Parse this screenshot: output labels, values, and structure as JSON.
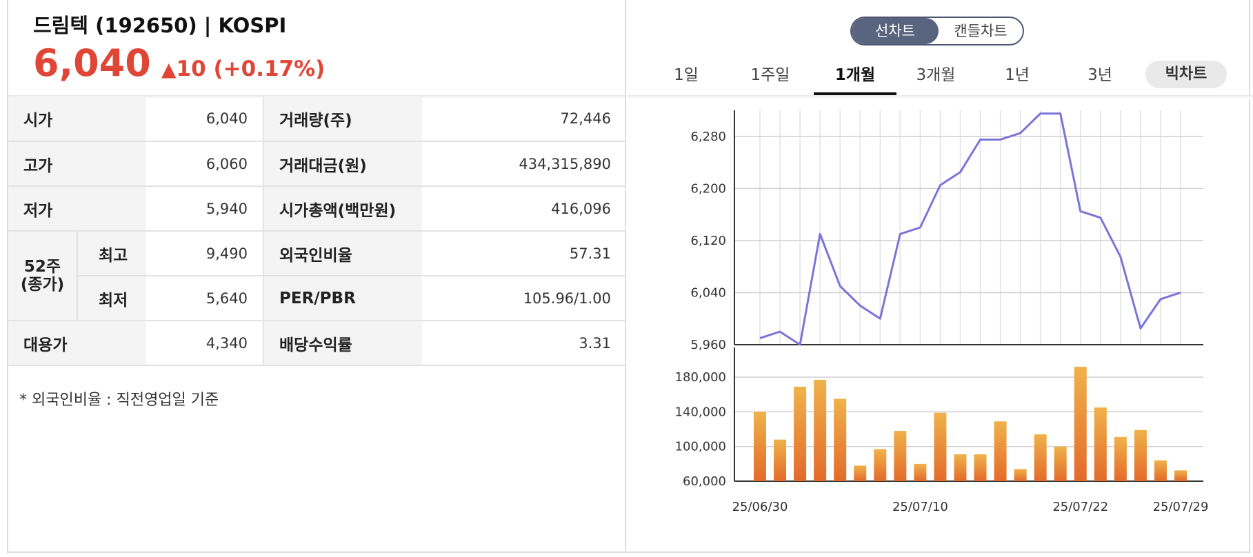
{
  "header": {
    "title": "드림텍 (192650) | KOSPI",
    "price": "6,040",
    "change_arrow": "▲",
    "change": "10 (+0.17%)",
    "up_color": "#e04636"
  },
  "table": {
    "open_label": "시가",
    "open": "6,040",
    "high_label": "고가",
    "high": "6,060",
    "low_label": "저가",
    "low": "5,940",
    "w52_label": "52주\n(종가)",
    "w52_high_label": "최고",
    "w52_high": "9,490",
    "w52_low_label": "최저",
    "w52_low": "5,640",
    "sub_label": "대용가",
    "sub": "4,340",
    "volume_label": "거래량(주)",
    "volume": "72,446",
    "amount_label": "거래대금(원)",
    "amount": "434,315,890",
    "mcap_label": "시가총액(백만원)",
    "mcap": "416,096",
    "foreign_label": "외국인비율",
    "foreign": "57.31",
    "perpbr_label": "PER/PBR",
    "perpbr": "105.96/1.00",
    "div_label": "배당수익률",
    "div": "3.31"
  },
  "footnote": "* 외국인비율 : 직전영업일 기준",
  "toggle": {
    "line": "선차트",
    "candle": "캔들차트"
  },
  "tabs": [
    "1일",
    "1주일",
    "1개월",
    "3개월",
    "1년",
    "3년"
  ],
  "active_tab": "1개월",
  "big_chart": "빅차트",
  "chart_data": {
    "type": "line",
    "x_labels": [
      "25/06/30",
      "25/07/10",
      "25/07/22",
      "25/07/29"
    ],
    "price": {
      "values": [
        5970,
        5980,
        5960,
        6130,
        6050,
        6020,
        6000,
        6130,
        6140,
        6205,
        6225,
        6275,
        6275,
        6285,
        6315,
        6315,
        6165,
        6155,
        6095,
        5985,
        6030,
        6040
      ],
      "yticks": [
        "6,280",
        "6,200",
        "6,120",
        "6,040",
        "5,960"
      ],
      "ylim": [
        5960,
        6320
      ],
      "color": "#7b74d8"
    },
    "volume": {
      "type": "bar",
      "values": [
        140000,
        108000,
        169000,
        177000,
        155000,
        78000,
        97000,
        118000,
        80000,
        139000,
        91000,
        91000,
        129000,
        74000,
        114000,
        100000,
        192000,
        145000,
        111000,
        119000,
        84000,
        72446
      ],
      "yticks": [
        "180,000",
        "140,000",
        "100,000",
        "60,000"
      ],
      "ylim": [
        60000,
        200000
      ],
      "color_top": "#f0b24a",
      "color_bottom": "#e36a2a"
    }
  }
}
